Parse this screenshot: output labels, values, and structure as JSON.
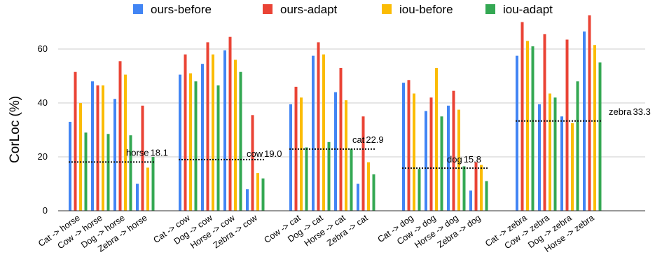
{
  "chart_data": {
    "type": "bar",
    "ylabel": "CorLoc (%)",
    "xlabel": "",
    "ylim": [
      0,
      70
    ],
    "yticks": [
      0,
      20,
      40,
      60
    ],
    "grid": true,
    "legend_position": "top",
    "series": [
      {
        "name": "ours-before",
        "color": "#4285F4"
      },
      {
        "name": "ours-adapt",
        "color": "#EA4335"
      },
      {
        "name": "iou-before",
        "color": "#FBBC04"
      },
      {
        "name": "iou-adapt",
        "color": "#34A853"
      }
    ],
    "groups": [
      {
        "label": "horse",
        "baseline": 18.1,
        "baseline_text": "horse",
        "baseline_value_text": "18.1",
        "categories": [
          {
            "label": "Cat -> horse",
            "values": [
              33,
              51.5,
              40,
              29
            ]
          },
          {
            "label": "Cow -> horse",
            "values": [
              48,
              46.5,
              46.5,
              28.5
            ]
          },
          {
            "label": "Dog -> horse",
            "values": [
              41.5,
              55.5,
              50.5,
              28
            ]
          },
          {
            "label": "Zebra -> horse",
            "values": [
              10,
              39,
              16,
              20
            ]
          }
        ]
      },
      {
        "label": "cow",
        "baseline": 19.0,
        "baseline_text": "cow",
        "baseline_value_text": "19.0",
        "categories": [
          {
            "label": "Cat -> cow",
            "values": [
              50.5,
              58,
              51,
              48
            ]
          },
          {
            "label": "Dog -> cow",
            "values": [
              54.5,
              62.5,
              58,
              46.5
            ]
          },
          {
            "label": "Horse -> cow",
            "values": [
              59.5,
              64.5,
              56,
              51.5
            ]
          },
          {
            "label": "Zebra -> cow",
            "values": [
              8,
              35.5,
              14,
              12
            ]
          }
        ]
      },
      {
        "label": "cat",
        "baseline": 22.9,
        "baseline_text": "cat",
        "baseline_value_text": "22.9",
        "categories": [
          {
            "label": "Cow -> cat",
            "values": [
              39.5,
              46,
              42,
              23.5
            ]
          },
          {
            "label": "Dog -> cat",
            "values": [
              57.5,
              62.5,
              58,
              25.5
            ]
          },
          {
            "label": "Horse -> cat",
            "values": [
              44,
              53,
              41,
              23
            ]
          },
          {
            "label": "Zebra -> cat",
            "values": [
              10,
              35,
              18,
              13.5
            ]
          }
        ]
      },
      {
        "label": "dog",
        "baseline": 15.8,
        "baseline_text": "dog",
        "baseline_value_text": "15.8",
        "categories": [
          {
            "label": "Cat -> dog",
            "values": [
              47.5,
              48.5,
              43.5,
              15.5
            ]
          },
          {
            "label": "Cow -> dog",
            "values": [
              37,
              42,
              53,
              35
            ]
          },
          {
            "label": "Horse -> dog",
            "values": [
              39,
              44.5,
              37.5,
              16.5
            ]
          },
          {
            "label": "Zebra -> dog",
            "values": [
              7.5,
              18,
              17,
              11
            ]
          }
        ]
      },
      {
        "label": "zebra",
        "baseline": 33.3,
        "baseline_text": "zebra",
        "baseline_value_text": "33.3",
        "categories": [
          {
            "label": "Cat -> zebra",
            "values": [
              57.5,
              70,
              63,
              61
            ]
          },
          {
            "label": "Cow -> zebra",
            "values": [
              39.5,
              65.5,
              43.5,
              42
            ]
          },
          {
            "label": "Dog -> zebra",
            "values": [
              35,
              63.5,
              32.5,
              48
            ]
          },
          {
            "label": "Horse -> zebra",
            "values": [
              66.5,
              72.5,
              61.5,
              55
            ]
          }
        ]
      }
    ]
  }
}
